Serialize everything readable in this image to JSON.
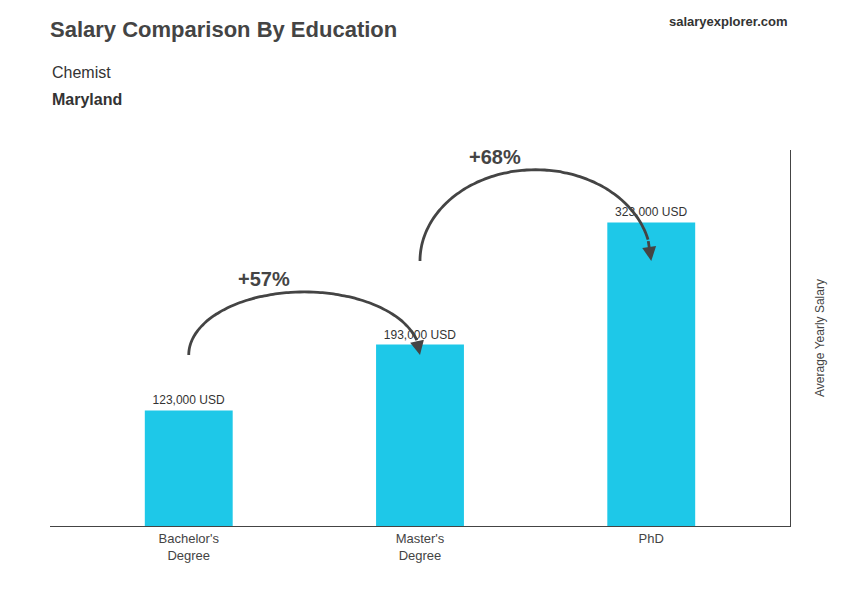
{
  "chart_data": {
    "type": "bar",
    "title": "Salary Comparison By Education",
    "subtitle": [
      "Chemist",
      "Maryland"
    ],
    "ylabel": "Average Yearly Salary",
    "categories": [
      "Bachelor's\nDegree",
      "Master's\nDegree",
      "PhD"
    ],
    "values": [
      123000,
      193000,
      323000
    ],
    "value_labels": [
      "123,000 USD",
      "193,000 USD",
      "323,000 USD"
    ],
    "data_labels": true,
    "color": "#1EC8E8",
    "ylim": [
      0,
      400000
    ],
    "grid": false,
    "tick_labels": "x",
    "annotations": [
      {
        "text": "+57%",
        "from": "Bachelor's\nDegree",
        "to": "Master's\nDegree"
      },
      {
        "text": "+68%",
        "from": "Master's\nDegree",
        "to": "PhD"
      },
      {
        "text": "salaryexplorer.com"
      }
    ]
  }
}
